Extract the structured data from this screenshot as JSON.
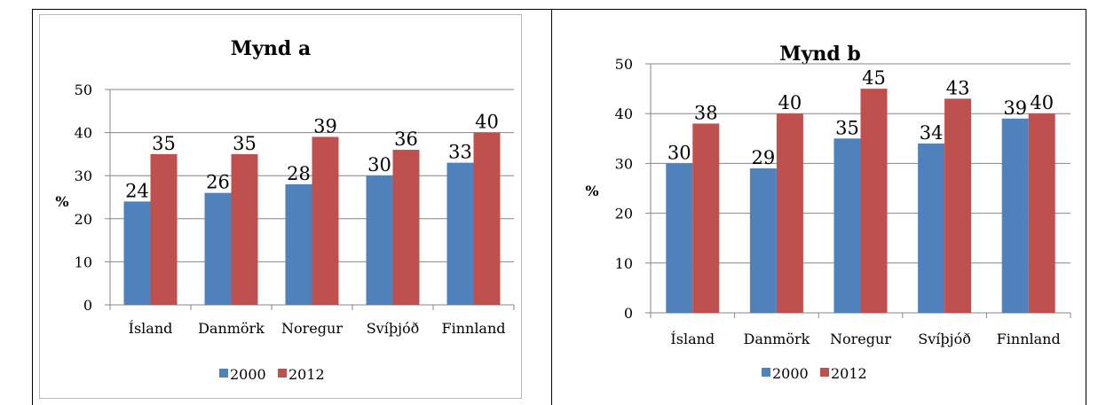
{
  "chart_data": [
    {
      "type": "bar",
      "title": "Mynd a",
      "ylabel": "%",
      "xlabel": "",
      "ylim": [
        0,
        50
      ],
      "yticks": [
        "0",
        "10",
        "20",
        "30",
        "40",
        "50"
      ],
      "categories": [
        "Ísland",
        "Danmörk",
        "Noregur",
        "Svíþjóð",
        "Finnland"
      ],
      "series": [
        {
          "name": "2000",
          "values": [
            24,
            26,
            28,
            30,
            33
          ],
          "color": "#4f81bd"
        },
        {
          "name": "2012",
          "values": [
            35,
            35,
            39,
            36,
            40
          ],
          "color": "#c0504d"
        }
      ],
      "grid": true,
      "legend": "bottom"
    },
    {
      "type": "bar",
      "title": "Mynd b",
      "ylabel": "%",
      "xlabel": "",
      "ylim": [
        0,
        50
      ],
      "yticks": [
        "0",
        "10",
        "20",
        "30",
        "40",
        "50"
      ],
      "categories": [
        "Ísland",
        "Danmörk",
        "Noregur",
        "Svíþjóð",
        "Finnland"
      ],
      "series": [
        {
          "name": "2000",
          "values": [
            30,
            29,
            35,
            34,
            39
          ],
          "color": "#4f81bd"
        },
        {
          "name": "2012",
          "values": [
            38,
            40,
            45,
            43,
            40
          ],
          "color": "#c0504d"
        }
      ],
      "grid": true,
      "legend": "bottom"
    }
  ]
}
